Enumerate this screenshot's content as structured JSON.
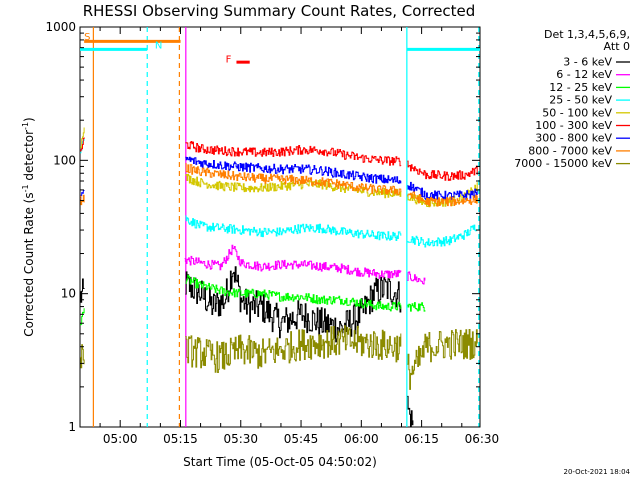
{
  "chart_data": {
    "type": "line",
    "title": "RHESSI Observing Summary Count Rates, Corrected",
    "xlabel": "Start Time (05-Oct-05 04:50:02)",
    "ylabel_main": "Corrected Count Rate (s",
    "ylabel_sup1": "-1",
    "ylabel_mid": " detector",
    "ylabel_sup2": "-1",
    "ylabel_end": ")",
    "yscale": "log",
    "xlim_minutes": [
      -0.03,
      99.5
    ],
    "ylim": [
      1,
      1000
    ],
    "x_ticks": [
      {
        "label": "05:00",
        "minute": 9.97
      },
      {
        "label": "05:15",
        "minute": 24.97
      },
      {
        "label": "05:30",
        "minute": 39.97
      },
      {
        "label": "05:45",
        "minute": 54.97
      },
      {
        "label": "06:00",
        "minute": 69.97
      },
      {
        "label": "06:15",
        "minute": 84.97
      },
      {
        "label": "06:30",
        "minute": 99.97
      }
    ],
    "y_ticks": [
      {
        "label": "1",
        "value": 1
      },
      {
        "label": "10",
        "value": 10
      },
      {
        "label": "100",
        "value": 100
      },
      {
        "label": "1000",
        "value": 1000
      }
    ],
    "legend_header": [
      "Det 1,3,4,5,6,9,",
      "Att 0"
    ],
    "data_gaps_minutes": [
      [
        1.0,
        26.0
      ],
      [
        80.0,
        81.3
      ]
    ],
    "series": [
      {
        "name": "3 - 6 keV",
        "color": "#000000",
        "points": [
          [
            0.0,
            9.5
          ],
          [
            1.0,
            10.0
          ],
          [
            26.0,
            12.0
          ],
          [
            30.0,
            10.0
          ],
          [
            33.0,
            8.0
          ],
          [
            36.0,
            9.0
          ],
          [
            38.0,
            16.0
          ],
          [
            40.0,
            9.0
          ],
          [
            42.0,
            8.0
          ],
          [
            45.0,
            8.0
          ],
          [
            50.0,
            6.0
          ],
          [
            55.0,
            7.0
          ],
          [
            60.0,
            6.0
          ],
          [
            65.0,
            5.5
          ],
          [
            70.0,
            7.0
          ],
          [
            73.0,
            10.0
          ],
          [
            76.0,
            11.0
          ],
          [
            79.0,
            10.0
          ],
          [
            80.0,
            9.0
          ],
          [
            81.3,
            1.5
          ],
          [
            82.0,
            1.2
          ],
          [
            83.0,
            1.0
          ]
        ]
      },
      {
        "name": "6 - 12 keV",
        "color": "#ff00ff",
        "points": [
          [
            26.0,
            18.0
          ],
          [
            30.0,
            17.0
          ],
          [
            35.0,
            16.0
          ],
          [
            38.0,
            22.0
          ],
          [
            40.0,
            17.0
          ],
          [
            45.0,
            16.0
          ],
          [
            50.0,
            16.5
          ],
          [
            55.0,
            16.5
          ],
          [
            60.0,
            16.0
          ],
          [
            65.0,
            15.5
          ],
          [
            70.0,
            14.5
          ],
          [
            75.0,
            14.0
          ],
          [
            80.0,
            14.0
          ],
          [
            85.0,
            12.5
          ],
          [
            86.0,
            12.0
          ]
        ]
      },
      {
        "name": "12 - 25 keV",
        "color": "#00ff00",
        "points": [
          [
            0.0,
            6.0
          ],
          [
            1.0,
            7.5
          ],
          [
            26.0,
            13.0
          ],
          [
            30.0,
            11.5
          ],
          [
            35.0,
            10.5
          ],
          [
            40.0,
            10.0
          ],
          [
            45.0,
            10.0
          ],
          [
            50.0,
            9.5
          ],
          [
            55.0,
            9.5
          ],
          [
            60.0,
            9.0
          ],
          [
            65.0,
            9.0
          ],
          [
            70.0,
            8.5
          ],
          [
            75.0,
            8.0
          ],
          [
            80.0,
            8.0
          ],
          [
            86.0,
            8.0
          ]
        ]
      },
      {
        "name": "25 - 50 keV",
        "color": "#00ffff",
        "points": [
          [
            0.0,
            120.0
          ],
          [
            1.0,
            150.0
          ],
          [
            26.0,
            37.0
          ],
          [
            30.0,
            32.0
          ],
          [
            35.0,
            31.0
          ],
          [
            40.0,
            30.0
          ],
          [
            45.0,
            29.0
          ],
          [
            50.0,
            29.0
          ],
          [
            55.0,
            31.0
          ],
          [
            60.0,
            31.0
          ],
          [
            65.0,
            29.0
          ],
          [
            70.0,
            28.0
          ],
          [
            75.0,
            27.0
          ],
          [
            80.0,
            27.0
          ],
          [
            86.0,
            24.0
          ],
          [
            92.0,
            25.0
          ],
          [
            96.0,
            28.0
          ],
          [
            99.0,
            33.0
          ]
        ]
      },
      {
        "name": "50 - 100 keV",
        "color": "#d4c700",
        "points": [
          [
            0.0,
            120.0
          ],
          [
            1.0,
            190.0
          ],
          [
            26.0,
            75.0
          ],
          [
            30.0,
            68.0
          ],
          [
            35.0,
            64.0
          ],
          [
            40.0,
            62.0
          ],
          [
            45.0,
            62.0
          ],
          [
            50.0,
            64.0
          ],
          [
            55.0,
            66.0
          ],
          [
            60.0,
            66.0
          ],
          [
            65.0,
            62.0
          ],
          [
            70.0,
            59.0
          ],
          [
            75.0,
            57.0
          ],
          [
            80.0,
            56.0
          ],
          [
            86.0,
            48.0
          ],
          [
            92.0,
            49.0
          ],
          [
            96.0,
            54.0
          ],
          [
            99.0,
            64.0
          ]
        ]
      },
      {
        "name": "100 - 300 keV",
        "color": "#ff0000",
        "points": [
          [
            0.0,
            115.0
          ],
          [
            1.0,
            145.0
          ],
          [
            26.0,
            133.0
          ],
          [
            30.0,
            122.0
          ],
          [
            35.0,
            118.0
          ],
          [
            40.0,
            116.0
          ],
          [
            45.0,
            114.0
          ],
          [
            50.0,
            116.0
          ],
          [
            55.0,
            120.0
          ],
          [
            60.0,
            119.0
          ],
          [
            65.0,
            111.0
          ],
          [
            70.0,
            104.0
          ],
          [
            75.0,
            100.0
          ],
          [
            80.0,
            98.0
          ],
          [
            86.0,
            78.0
          ],
          [
            92.0,
            76.0
          ],
          [
            96.0,
            78.0
          ],
          [
            99.0,
            85.0
          ]
        ]
      },
      {
        "name": "300 - 800 keV",
        "color": "#0000ff",
        "points": [
          [
            0.0,
            55.0
          ],
          [
            1.0,
            56.0
          ],
          [
            26.0,
            103.0
          ],
          [
            30.0,
            96.0
          ],
          [
            35.0,
            92.0
          ],
          [
            40.0,
            89.0
          ],
          [
            45.0,
            87.0
          ],
          [
            50.0,
            86.0
          ],
          [
            55.0,
            86.0
          ],
          [
            60.0,
            84.0
          ],
          [
            65.0,
            79.0
          ],
          [
            70.0,
            75.0
          ],
          [
            75.0,
            72.0
          ],
          [
            80.0,
            70.0
          ],
          [
            86.0,
            55.0
          ],
          [
            92.0,
            54.0
          ],
          [
            96.0,
            55.0
          ],
          [
            99.0,
            57.0
          ]
        ]
      },
      {
        "name": "800 - 7000 keV",
        "color": "#ff7f00",
        "points": [
          [
            0.0,
            50.0
          ],
          [
            1.0,
            52.0
          ],
          [
            26.0,
            88.0
          ],
          [
            30.0,
            82.0
          ],
          [
            35.0,
            78.0
          ],
          [
            40.0,
            75.0
          ],
          [
            45.0,
            73.0
          ],
          [
            50.0,
            72.0
          ],
          [
            55.0,
            71.0
          ],
          [
            60.0,
            69.0
          ],
          [
            65.0,
            66.0
          ],
          [
            70.0,
            62.0
          ],
          [
            75.0,
            60.0
          ],
          [
            80.0,
            59.0
          ],
          [
            86.0,
            49.0
          ],
          [
            92.0,
            49.0
          ],
          [
            96.0,
            50.0
          ],
          [
            99.0,
            51.0
          ]
        ]
      },
      {
        "name": "7000 - 15000 keV",
        "color": "#8b8b00",
        "points": [
          [
            0.0,
            3.6
          ],
          [
            1.0,
            3.6
          ],
          [
            26.0,
            3.8
          ],
          [
            30.0,
            3.6
          ],
          [
            35.0,
            3.3
          ],
          [
            40.0,
            3.8
          ],
          [
            45.0,
            3.5
          ],
          [
            50.0,
            3.8
          ],
          [
            55.0,
            4.2
          ],
          [
            60.0,
            4.3
          ],
          [
            65.0,
            4.4
          ],
          [
            70.0,
            4.3
          ],
          [
            75.0,
            4.1
          ],
          [
            80.0,
            4.0
          ],
          [
            82.0,
            2.5
          ],
          [
            84.0,
            3.0
          ],
          [
            86.0,
            4.0
          ],
          [
            92.0,
            4.2
          ],
          [
            96.0,
            4.2
          ],
          [
            99.0,
            4.3
          ]
        ]
      }
    ],
    "annotations": [
      {
        "label": "S",
        "color": "#ff7f00",
        "text_minute": 1.0,
        "text_value": 800,
        "bar_from_minute": 1.0,
        "bar_to_minute": 25.0,
        "bar_value": 780
      },
      {
        "label": "N",
        "color": "#00ffff",
        "text_minute": 18.6,
        "text_value": 690,
        "bar_from_minute": -0.03,
        "bar_to_minute": 16.7,
        "bar_value": 680
      },
      {
        "label": "N",
        "color": "#00ffff",
        "text_minute": null,
        "text_value": null,
        "bar_from_minute": 81.3,
        "bar_to_minute": 99.5,
        "bar_value": 680
      },
      {
        "label": "F",
        "color": "#ff0000",
        "text_minute": 36.2,
        "text_value": 540,
        "bar_from_minute": 38.9,
        "bar_to_minute": 42.2,
        "bar_value": 545
      }
    ],
    "vertical_markers": [
      {
        "minute": 3.3,
        "color": "#ff7f00",
        "style": "solid"
      },
      {
        "minute": 16.7,
        "color": "#00ffff",
        "style": "dashed"
      },
      {
        "minute": 24.7,
        "color": "#ff7f00",
        "style": "dashed"
      },
      {
        "minute": 26.3,
        "color": "#ff00ff",
        "style": "solid"
      },
      {
        "minute": 81.3,
        "color": "#00ffff",
        "style": "solid"
      },
      {
        "minute": 99.2,
        "color": "#00ffff",
        "style": "dashed"
      }
    ],
    "timestamp": "20-Oct-2021 18:04"
  }
}
